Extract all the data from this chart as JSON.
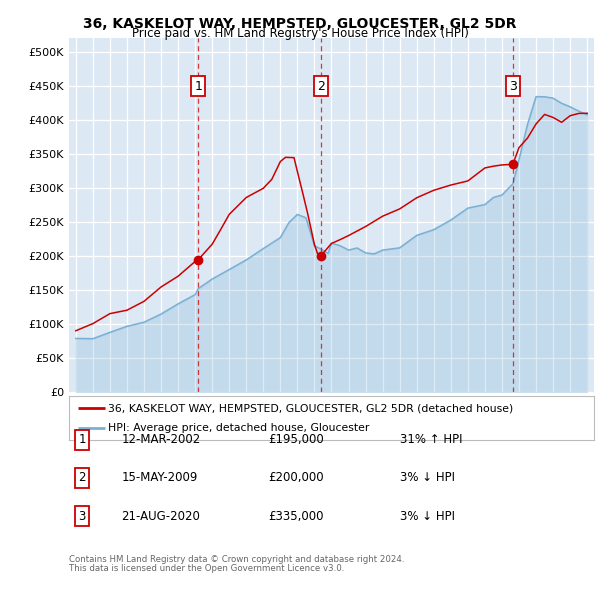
{
  "title1": "36, KASKELOT WAY, HEMPSTED, GLOUCESTER, GL2 5DR",
  "title2": "Price paid vs. HM Land Registry's House Price Index (HPI)",
  "yticks": [
    0,
    50000,
    100000,
    150000,
    200000,
    250000,
    300000,
    350000,
    400000,
    450000,
    500000
  ],
  "ytick_labels": [
    "£0",
    "£50K",
    "£100K",
    "£150K",
    "£200K",
    "£250K",
    "£300K",
    "£350K",
    "£400K",
    "£450K",
    "£500K"
  ],
  "xlim_start": 1994.6,
  "xlim_end": 2025.4,
  "ylim_min": 0,
  "ylim_max": 520000,
  "background_color": "#dce9f5",
  "grid_color": "#ffffff",
  "sale_dates": [
    2002.19,
    2009.37,
    2020.64
  ],
  "sale_prices": [
    195000,
    200000,
    335000
  ],
  "sale_labels": [
    "1",
    "2",
    "3"
  ],
  "legend_line1": "36, KASKELOT WAY, HEMPSTED, GLOUCESTER, GL2 5DR (detached house)",
  "legend_line2": "HPI: Average price, detached house, Gloucester",
  "table_entries": [
    {
      "num": "1",
      "date": "12-MAR-2002",
      "price": "£195,000",
      "change": "31% ↑ HPI"
    },
    {
      "num": "2",
      "date": "15-MAY-2009",
      "price": "£200,000",
      "change": "3% ↓ HPI"
    },
    {
      "num": "3",
      "date": "21-AUG-2020",
      "price": "£335,000",
      "change": "3% ↓ HPI"
    }
  ],
  "footnote1": "Contains HM Land Registry data © Crown copyright and database right 2024.",
  "footnote2": "This data is licensed under the Open Government Licence v3.0.",
  "red_color": "#cc0000",
  "blue_color": "#7ab0d4",
  "fig_bg": "#ffffff"
}
